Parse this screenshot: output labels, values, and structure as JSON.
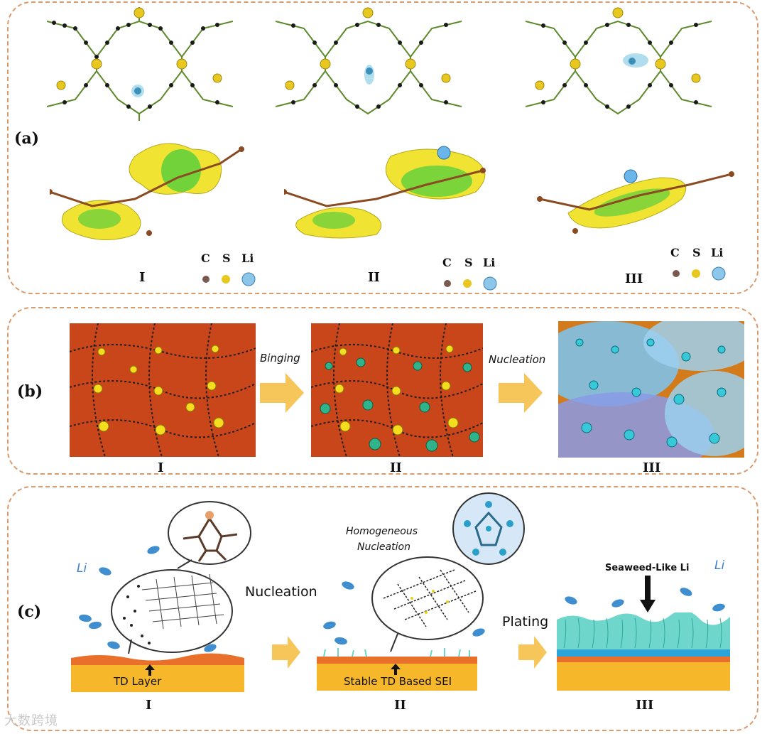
{
  "panel_a": {
    "label": "(a)",
    "stages": [
      "I",
      "II",
      "III"
    ],
    "legend": [
      "C",
      "S",
      "Li"
    ]
  },
  "panel_b": {
    "label": "(b)",
    "stages": [
      "I",
      "II",
      "III"
    ],
    "arrows": [
      "Binging",
      "Nucleation"
    ]
  },
  "panel_c": {
    "label": "(c)",
    "stages": [
      "I",
      "II",
      "III"
    ],
    "li_label_left": "Li",
    "li_label_right": "Li",
    "nucleation": "Nucleation",
    "td_layer": "TD Layer",
    "homogeneous": "Homogeneous",
    "homogeneous_line2": "Nucleation",
    "stable_sei": "Stable TD Based SEI",
    "plating": "Plating",
    "seaweed": "Seaweed-Like Li"
  },
  "watermark": "大数跨境"
}
